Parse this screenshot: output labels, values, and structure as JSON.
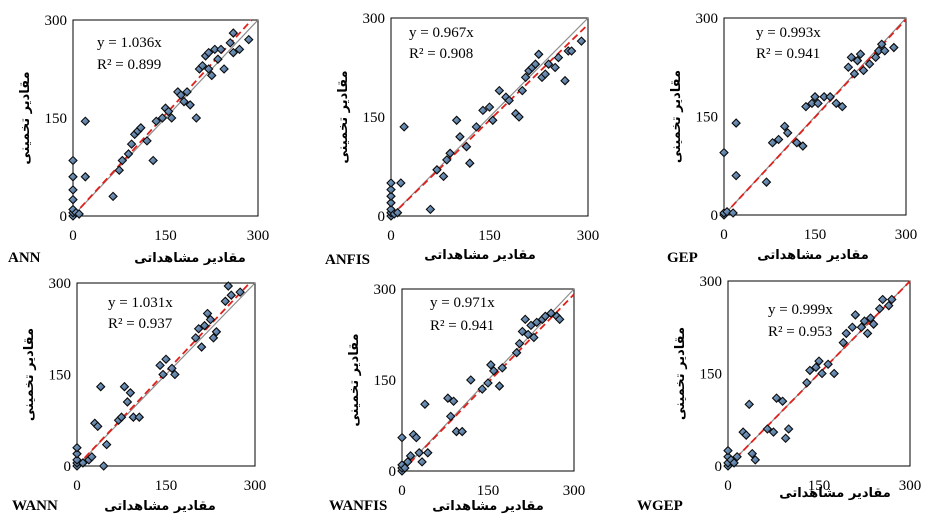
{
  "chart_data": [
    {
      "type": "scatter",
      "model": "ANN",
      "equation": "y = 1.036x",
      "r2": "R² = 0.899",
      "xlabel": "مقادیر مشاهداتی",
      "ylabel": "مقادیر تخمینی",
      "xlim": [
        0,
        300
      ],
      "ylim": [
        0,
        300
      ],
      "xticks": [
        "0",
        "150",
        "300"
      ],
      "yticks": [
        "0",
        "150",
        "300"
      ],
      "slope": 1.036,
      "points": [
        [
          0,
          0
        ],
        [
          0,
          5
        ],
        [
          0,
          10
        ],
        [
          0,
          25
        ],
        [
          0,
          40
        ],
        [
          0,
          60
        ],
        [
          0,
          85
        ],
        [
          5,
          5
        ],
        [
          10,
          3
        ],
        [
          20,
          145
        ],
        [
          20,
          60
        ],
        [
          65,
          30
        ],
        [
          75,
          70
        ],
        [
          80,
          85
        ],
        [
          90,
          95
        ],
        [
          95,
          110
        ],
        [
          100,
          125
        ],
        [
          105,
          130
        ],
        [
          110,
          135
        ],
        [
          120,
          115
        ],
        [
          130,
          85
        ],
        [
          135,
          145
        ],
        [
          145,
          150
        ],
        [
          150,
          165
        ],
        [
          155,
          160
        ],
        [
          160,
          150
        ],
        [
          170,
          190
        ],
        [
          175,
          185
        ],
        [
          180,
          175
        ],
        [
          185,
          190
        ],
        [
          190,
          170
        ],
        [
          200,
          150
        ],
        [
          205,
          225
        ],
        [
          210,
          230
        ],
        [
          215,
          245
        ],
        [
          220,
          250
        ],
        [
          220,
          225
        ],
        [
          225,
          215
        ],
        [
          230,
          255
        ],
        [
          235,
          240
        ],
        [
          240,
          255
        ],
        [
          245,
          225
        ],
        [
          255,
          265
        ],
        [
          260,
          280
        ],
        [
          260,
          250
        ],
        [
          270,
          255
        ],
        [
          285,
          270
        ]
      ]
    },
    {
      "type": "scatter",
      "model": "ANFIS",
      "equation": "y = 0.967x",
      "r2": "R² = 0.908",
      "xlabel": "مقادیر مشاهداتی",
      "ylabel": "مقادیر تخمینی",
      "xlim": [
        0,
        300
      ],
      "ylim": [
        0,
        300
      ],
      "xticks": [
        "0",
        "150",
        "300"
      ],
      "yticks": [
        "0",
        "150",
        "300"
      ],
      "slope": 0.967,
      "points": [
        [
          0,
          0
        ],
        [
          0,
          5
        ],
        [
          0,
          10
        ],
        [
          0,
          20
        ],
        [
          0,
          30
        ],
        [
          0,
          40
        ],
        [
          0,
          50
        ],
        [
          5,
          3
        ],
        [
          10,
          5
        ],
        [
          15,
          50
        ],
        [
          20,
          135
        ],
        [
          60,
          10
        ],
        [
          70,
          70
        ],
        [
          80,
          60
        ],
        [
          85,
          85
        ],
        [
          90,
          95
        ],
        [
          100,
          145
        ],
        [
          105,
          120
        ],
        [
          115,
          105
        ],
        [
          120,
          80
        ],
        [
          130,
          135
        ],
        [
          140,
          160
        ],
        [
          150,
          165
        ],
        [
          155,
          145
        ],
        [
          165,
          190
        ],
        [
          175,
          180
        ],
        [
          180,
          175
        ],
        [
          190,
          155
        ],
        [
          195,
          150
        ],
        [
          200,
          190
        ],
        [
          205,
          210
        ],
        [
          210,
          220
        ],
        [
          215,
          225
        ],
        [
          220,
          230
        ],
        [
          225,
          245
        ],
        [
          230,
          210
        ],
        [
          235,
          215
        ],
        [
          240,
          230
        ],
        [
          250,
          225
        ],
        [
          255,
          240
        ],
        [
          265,
          205
        ],
        [
          270,
          250
        ],
        [
          275,
          250
        ],
        [
          290,
          265
        ]
      ]
    },
    {
      "type": "scatter",
      "model": "GEP",
      "equation": "y = 0.993x",
      "r2": "R² = 0.941",
      "xlabel": "مقادیر مشاهداتی",
      "ylabel": "مقادیر تخمینی",
      "xlim": [
        0,
        300
      ],
      "ylim": [
        0,
        300
      ],
      "xticks": [
        "0",
        "150",
        "300"
      ],
      "yticks": [
        "0",
        "150",
        "300"
      ],
      "slope": 0.993,
      "points": [
        [
          0,
          0
        ],
        [
          0,
          3
        ],
        [
          0,
          95
        ],
        [
          5,
          5
        ],
        [
          15,
          3
        ],
        [
          20,
          140
        ],
        [
          20,
          60
        ],
        [
          70,
          50
        ],
        [
          80,
          110
        ],
        [
          90,
          115
        ],
        [
          100,
          135
        ],
        [
          105,
          125
        ],
        [
          120,
          110
        ],
        [
          130,
          105
        ],
        [
          135,
          165
        ],
        [
          145,
          170
        ],
        [
          150,
          180
        ],
        [
          155,
          170
        ],
        [
          165,
          180
        ],
        [
          175,
          180
        ],
        [
          185,
          170
        ],
        [
          195,
          165
        ],
        [
          205,
          225
        ],
        [
          210,
          240
        ],
        [
          215,
          215
        ],
        [
          220,
          235
        ],
        [
          225,
          245
        ],
        [
          230,
          220
        ],
        [
          240,
          230
        ],
        [
          250,
          240
        ],
        [
          255,
          250
        ],
        [
          260,
          260
        ],
        [
          265,
          250
        ],
        [
          280,
          255
        ]
      ]
    },
    {
      "type": "scatter",
      "model": "WANN",
      "equation": "y = 1.031x",
      "r2": "R² = 0.937",
      "xlabel": "مقادیر مشاهداتی",
      "ylabel": "مقادیر تخمینی",
      "xlim": [
        0,
        300
      ],
      "ylim": [
        0,
        300
      ],
      "xticks": [
        "0",
        "150",
        "300"
      ],
      "yticks": [
        "0",
        "150",
        "300"
      ],
      "slope": 1.031,
      "points": [
        [
          0,
          0
        ],
        [
          0,
          5
        ],
        [
          0,
          10
        ],
        [
          0,
          20
        ],
        [
          0,
          30
        ],
        [
          10,
          5
        ],
        [
          20,
          10
        ],
        [
          25,
          15
        ],
        [
          30,
          70
        ],
        [
          35,
          65
        ],
        [
          40,
          130
        ],
        [
          45,
          0
        ],
        [
          50,
          35
        ],
        [
          70,
          75
        ],
        [
          75,
          80
        ],
        [
          80,
          130
        ],
        [
          85,
          105
        ],
        [
          90,
          120
        ],
        [
          95,
          80
        ],
        [
          105,
          80
        ],
        [
          140,
          165
        ],
        [
          145,
          150
        ],
        [
          150,
          175
        ],
        [
          160,
          160
        ],
        [
          165,
          150
        ],
        [
          200,
          210
        ],
        [
          205,
          225
        ],
        [
          210,
          195
        ],
        [
          215,
          230
        ],
        [
          220,
          250
        ],
        [
          225,
          240
        ],
        [
          230,
          210
        ],
        [
          235,
          220
        ],
        [
          250,
          270
        ],
        [
          255,
          295
        ],
        [
          260,
          280
        ],
        [
          275,
          285
        ]
      ]
    },
    {
      "type": "scatter",
      "model": "WANFIS",
      "equation": "y = 0.971x",
      "r2": "R² = 0.941",
      "xlabel": "مقادیر مشاهداتی",
      "ylabel": "مقادیر تخمینی",
      "xlim": [
        0,
        300
      ],
      "ylim": [
        0,
        300
      ],
      "xticks": [
        "0",
        "150",
        "300"
      ],
      "yticks": [
        "0",
        "150",
        "300"
      ],
      "slope": 0.971,
      "points": [
        [
          0,
          0
        ],
        [
          0,
          5
        ],
        [
          0,
          10
        ],
        [
          0,
          55
        ],
        [
          5,
          5
        ],
        [
          10,
          15
        ],
        [
          15,
          25
        ],
        [
          20,
          60
        ],
        [
          25,
          55
        ],
        [
          30,
          30
        ],
        [
          35,
          15
        ],
        [
          40,
          110
        ],
        [
          45,
          30
        ],
        [
          80,
          120
        ],
        [
          85,
          90
        ],
        [
          90,
          115
        ],
        [
          95,
          65
        ],
        [
          105,
          65
        ],
        [
          120,
          150
        ],
        [
          140,
          135
        ],
        [
          150,
          145
        ],
        [
          155,
          175
        ],
        [
          160,
          165
        ],
        [
          170,
          140
        ],
        [
          175,
          170
        ],
        [
          200,
          195
        ],
        [
          205,
          210
        ],
        [
          210,
          230
        ],
        [
          215,
          250
        ],
        [
          220,
          225
        ],
        [
          225,
          240
        ],
        [
          230,
          220
        ],
        [
          235,
          245
        ],
        [
          245,
          250
        ],
        [
          250,
          255
        ],
        [
          260,
          260
        ],
        [
          270,
          255
        ],
        [
          275,
          250
        ]
      ]
    },
    {
      "type": "scatter",
      "model": "WGEP",
      "equation": "y = 0.999x",
      "r2": "R² = 0.953",
      "xlabel": "مقادیر مشاهداتی",
      "ylabel": "مقادیر تخمینی",
      "xlim": [
        0,
        300
      ],
      "ylim": [
        0,
        300
      ],
      "xticks": [
        "0",
        "150",
        "300"
      ],
      "yticks": [
        "0",
        "150",
        "300"
      ],
      "slope": 0.999,
      "points": [
        [
          0,
          0
        ],
        [
          0,
          5
        ],
        [
          0,
          15
        ],
        [
          0,
          25
        ],
        [
          5,
          10
        ],
        [
          10,
          5
        ],
        [
          15,
          15
        ],
        [
          25,
          55
        ],
        [
          30,
          50
        ],
        [
          35,
          100
        ],
        [
          40,
          20
        ],
        [
          45,
          10
        ],
        [
          65,
          60
        ],
        [
          75,
          55
        ],
        [
          80,
          110
        ],
        [
          90,
          105
        ],
        [
          95,
          45
        ],
        [
          100,
          60
        ],
        [
          130,
          135
        ],
        [
          135,
          155
        ],
        [
          145,
          160
        ],
        [
          150,
          170
        ],
        [
          155,
          150
        ],
        [
          165,
          165
        ],
        [
          175,
          150
        ],
        [
          190,
          200
        ],
        [
          195,
          215
        ],
        [
          205,
          225
        ],
        [
          210,
          245
        ],
        [
          220,
          225
        ],
        [
          225,
          235
        ],
        [
          230,
          215
        ],
        [
          235,
          240
        ],
        [
          240,
          230
        ],
        [
          250,
          255
        ],
        [
          255,
          270
        ],
        [
          265,
          260
        ],
        [
          270,
          270
        ]
      ]
    }
  ]
}
